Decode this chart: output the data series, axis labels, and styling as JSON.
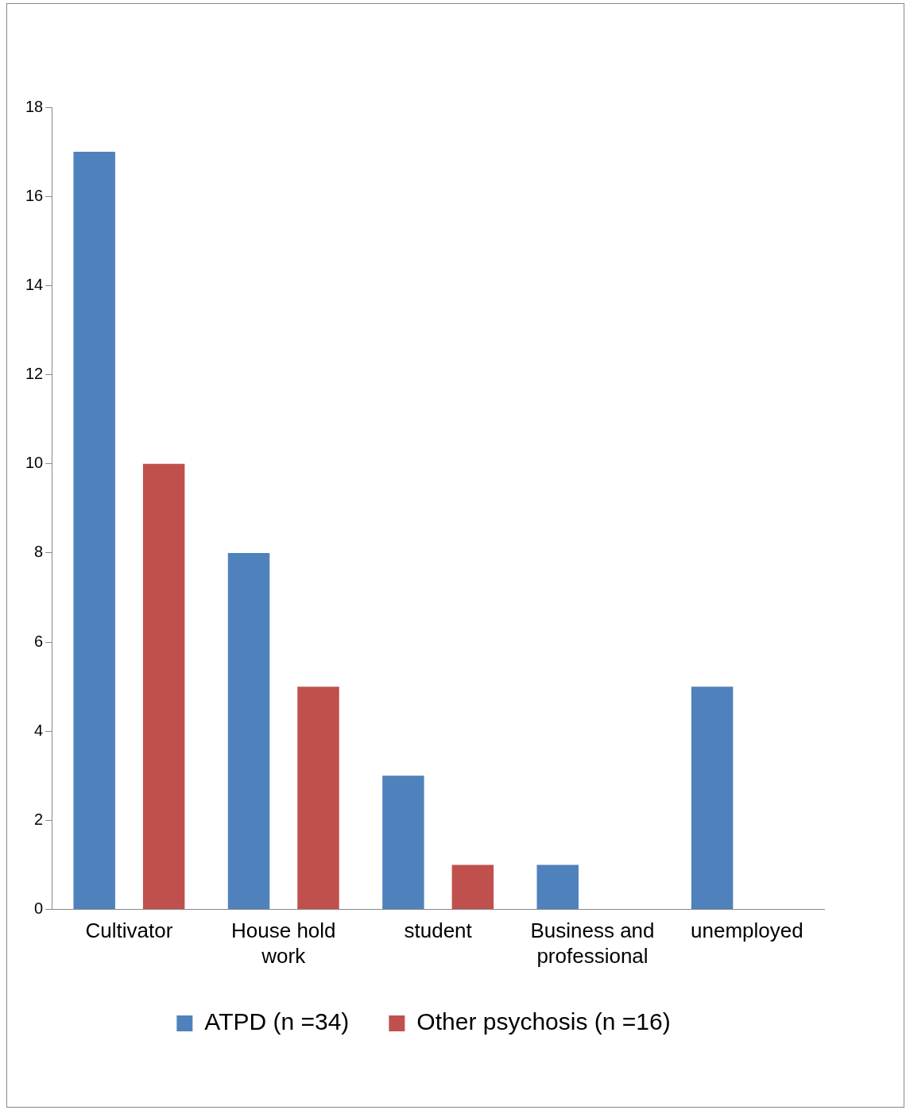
{
  "chart_data": {
    "type": "bar",
    "categories": [
      "Cultivator",
      "House hold work",
      "student",
      "Business and professional",
      "unemployed"
    ],
    "series": [
      {
        "name": "ATPD (n =34)",
        "color": "#4f81bd",
        "values": [
          17,
          8,
          3,
          1,
          5
        ]
      },
      {
        "name": "Other psychosis (n =16)",
        "color": "#c0504d",
        "values": [
          10,
          5,
          1,
          0,
          0
        ]
      }
    ],
    "ylim": [
      0,
      18
    ],
    "yticks": [
      0,
      2,
      4,
      6,
      8,
      10,
      12,
      14,
      16,
      18
    ],
    "grid": false,
    "legend": "bottom"
  }
}
